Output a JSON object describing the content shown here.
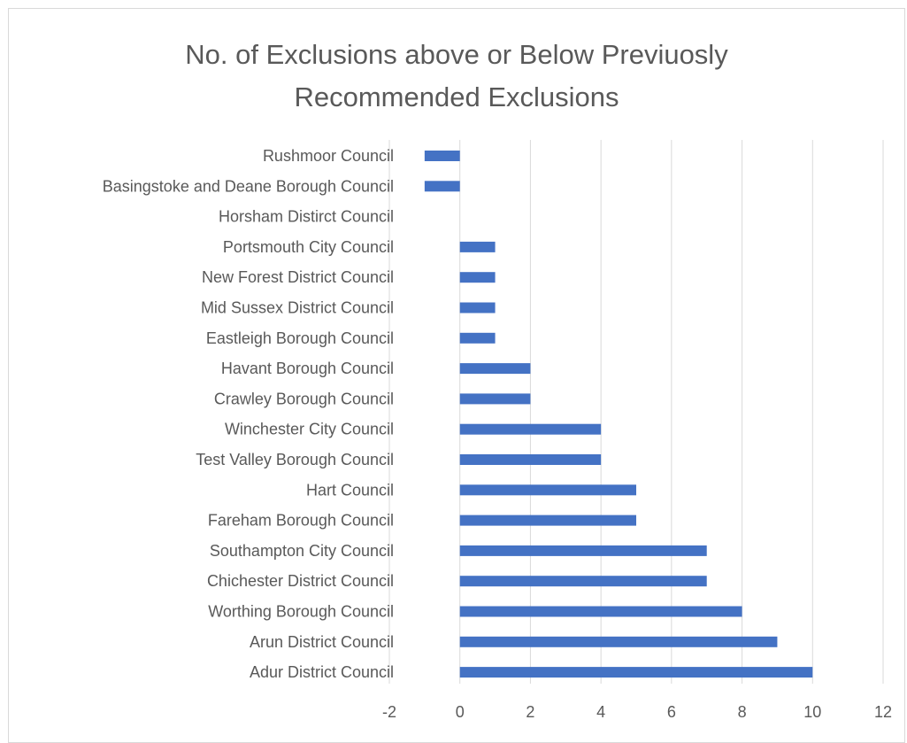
{
  "chart_data": {
    "type": "bar",
    "orientation": "horizontal",
    "title_lines": [
      "No. of Exclusions above or Below Previuosly",
      "Recommended Exclusions"
    ],
    "categories": [
      "Rushmoor Council",
      "Basingstoke and Deane Borough Council",
      "Horsham Distirct Council",
      "Portsmouth City Council",
      "New Forest District Council",
      "Mid Sussex District Council",
      "Eastleigh Borough Council",
      "Havant Borough Council",
      "Crawley Borough Council",
      "Winchester City Council",
      "Test Valley Borough Council",
      "Hart Council",
      "Fareham Borough Council",
      "Southampton City Council",
      "Chichester District Council",
      "Worthing Borough Council",
      "Arun District Council",
      "Adur District Council"
    ],
    "values": [
      -1,
      -1,
      0,
      1,
      1,
      1,
      1,
      2,
      2,
      4,
      4,
      5,
      5,
      7,
      7,
      8,
      9,
      10
    ],
    "xlim": [
      -2,
      12
    ],
    "xticks": [
      "-2",
      "0",
      "2",
      "4",
      "6",
      "8",
      "10",
      "12"
    ],
    "bar_color": "#4472c4",
    "grid": "vertical"
  }
}
